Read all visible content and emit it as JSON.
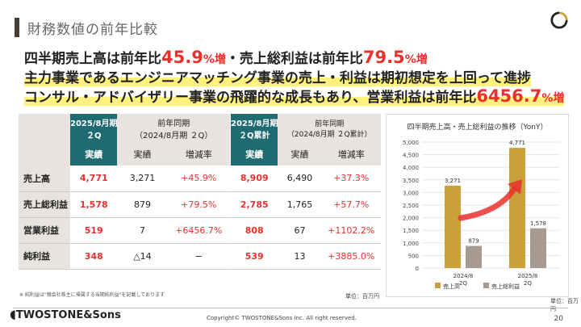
{
  "header": {
    "title": "財務数値の前年比較"
  },
  "headlines": {
    "line1": {
      "pre": "四半期売上高は前年比",
      "v1": "45.9",
      "p1": "%増",
      "mid": "・売上総利益は前年比",
      "v2": "79.5",
      "p2": "%増"
    },
    "line2": {
      "text": "主力事業であるエンジニアマッチング事業の売上・利益は期初想定を上回って進捗"
    },
    "line3": {
      "pre": "コンサル・アドバイザリー事業の飛躍的な成長もあり、営業利益は前年比",
      "v": "6456.7",
      "p": "%増"
    }
  },
  "table_q": {
    "col_current": "2025/8月期\n２Q",
    "col_prev": "前年同期\n（2024/8月期 ２Q）",
    "sub_actual": "実績",
    "sub_actual2": "実績",
    "sub_change": "増減率",
    "rows": [
      {
        "label": "売上高",
        "cur": "4,771",
        "prev": "3,271",
        "chg": "+45.9%"
      },
      {
        "label": "売上総利益",
        "cur": "1,578",
        "prev": "879",
        "chg": "+79.5%"
      },
      {
        "label": "営業利益",
        "cur": "519",
        "prev": "7",
        "chg": "+6456.7%"
      },
      {
        "label": "純利益",
        "cur": "348",
        "prev": "△14",
        "chg": "−"
      }
    ]
  },
  "table_cum": {
    "col_current": "2025/8月期\n２Q累計",
    "col_prev": "前年同期\n（2024/8月期 ２Q累計）",
    "sub_actual": "実績",
    "sub_actual2": "実績",
    "sub_change": "増減率",
    "rows": [
      {
        "cur": "8,909",
        "prev": "6,490",
        "chg": "+37.3%"
      },
      {
        "cur": "2,785",
        "prev": "1,765",
        "chg": "+57.7%"
      },
      {
        "cur": "808",
        "prev": "67",
        "chg": "+1102.2%"
      },
      {
        "cur": "539",
        "prev": "13",
        "chg": "+3885.0%"
      }
    ]
  },
  "note": "※ 純利益は\"親会社株主に帰属する当期純利益\"を記載しております",
  "unit1": "単位：百万円",
  "unit2": "単位：百万円",
  "chart_data": {
    "type": "bar",
    "title": "四半期売上高・売上総利益の推移（YonY）",
    "categories": [
      "2024/8\n2Q",
      "2025/8\n2Q"
    ],
    "series": [
      {
        "name": "売上高",
        "values": [
          3271,
          4771
        ],
        "color": "#c9a03a"
      },
      {
        "name": "売上総利益",
        "values": [
          879,
          1578
        ],
        "color": "#a79a90"
      }
    ],
    "ylim": [
      0,
      5000
    ],
    "yticks": [
      "0",
      "500",
      "1,000",
      "1,500",
      "2,000",
      "2,500",
      "3,000",
      "3,500",
      "4,000",
      "4,500",
      "5,000"
    ],
    "data_labels": [
      "3,271",
      "4,771",
      "879",
      "1,578"
    ],
    "legend": "bottom"
  },
  "footer": {
    "brand": "TWOSTONE&Sons",
    "copyright": "Copyright© TWOSTONE&Sons Inc. All right reserved.",
    "page": "20"
  },
  "colors": {
    "accent": "#e8312f",
    "teal": "#1f6b72",
    "highlight": "#fff27a"
  }
}
